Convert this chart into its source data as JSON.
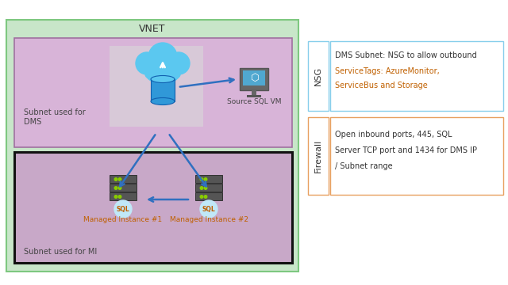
{
  "title": "VNET",
  "bg_color": "#ffffff",
  "vnet_color": "#c8e6c9",
  "vnet_border": "#7ec880",
  "dms_subnet_color": "#d8b4d8",
  "dms_subnet_border": "#a070a0",
  "mi_subnet_color": "#c8a8c8",
  "mi_subnet_border": "#111111",
  "cloud_bg": "#e0e0e0",
  "nsg_border": "#87ceeb",
  "firewall_border": "#e8a060",
  "nsg_label": "NSG",
  "firewall_label": "Firewall",
  "nsg_text_line1": "DMS Subnet: NSG to allow outbound",
  "nsg_text_line2": "ServiceTags: AzureMonitor,",
  "nsg_text_line3": "ServiceBus and Storage",
  "fw_text_line1": "Open inbound ports, 445, SQL",
  "fw_text_line2": "Server TCP port and 1434 for DMS IP",
  "fw_text_line3": "/ Subnet range",
  "dms_label": "Subnet used for\nDMS",
  "mi_label": "Subnet used for MI",
  "source_sql_label": "Source SQL VM",
  "mi1_label": "Managed Instance #1",
  "mi2_label": "Managed Instance #2",
  "arrow_color": "#3070c0",
  "orange_label": "#c06000"
}
